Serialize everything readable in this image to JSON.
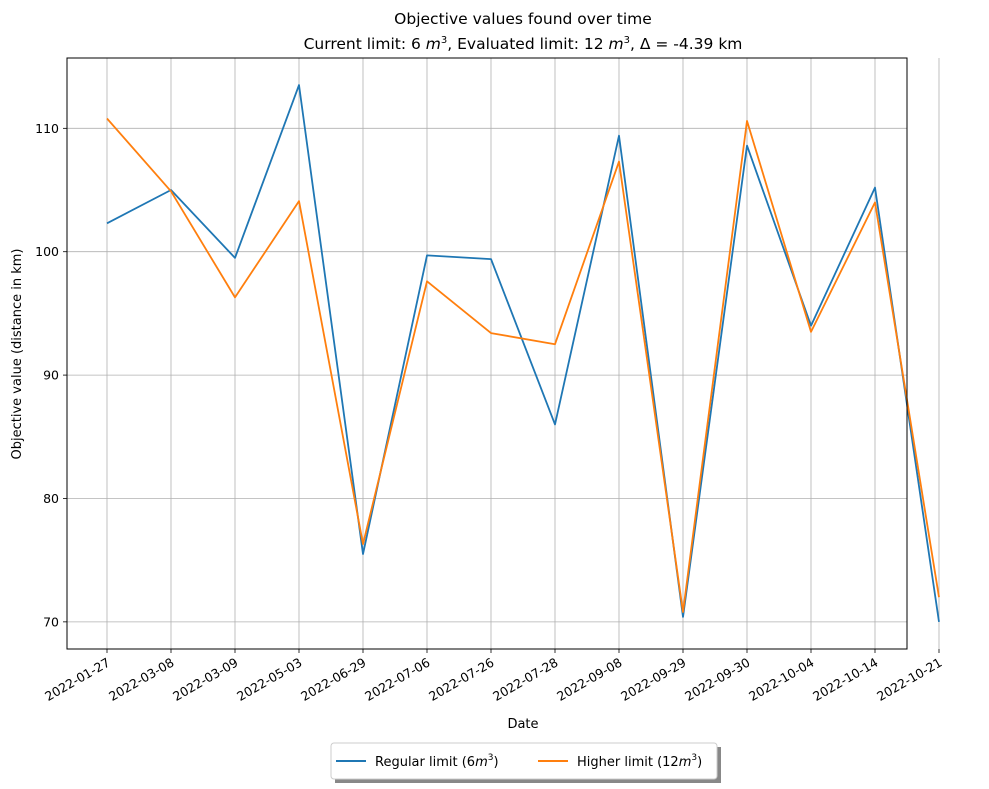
{
  "chart_data": {
    "type": "line",
    "title": "Objective values found over time",
    "subtitle": {
      "pre": "Current limit: 6 ",
      "mid": ", Evaluated limit: 12 ",
      "post": ", Δ = -4.39 km",
      "unit_base": "m",
      "unit_exp": "3"
    },
    "xlabel": "Date",
    "ylabel": "Objective value (distance in km)",
    "categories": [
      "2022-01-27",
      "2022-03-08",
      "2022-03-09",
      "2022-05-03",
      "2022-06-29",
      "2022-07-06",
      "2022-07-26",
      "2022-07-28",
      "2022-09-08",
      "2022-09-29",
      "2022-09-30",
      "2022-10-04",
      "2022-10-14",
      "2022-10-21"
    ],
    "ylim": [
      67.8,
      115.7
    ],
    "yticks": [
      70,
      80,
      90,
      100,
      110
    ],
    "grid": true,
    "legend_position": "bottom-center",
    "series": [
      {
        "name_pre": "Regular limit (6",
        "name_sup": "3",
        "name_post": ")",
        "unit_base": "m",
        "color": "#1f77b4",
        "values": [
          102.3,
          105.0,
          99.5,
          113.5,
          75.5,
          99.7,
          99.4,
          86.0,
          109.4,
          70.4,
          108.6,
          94.0,
          105.2,
          70.0
        ]
      },
      {
        "name_pre": "Higher limit (12",
        "name_sup": "3",
        "name_post": ")",
        "unit_base": "m",
        "color": "#ff7f0e",
        "values": [
          110.8,
          104.9,
          96.3,
          104.1,
          76.3,
          97.6,
          93.4,
          92.5,
          107.3,
          70.8,
          110.6,
          93.5,
          104.0,
          72.0
        ]
      }
    ]
  }
}
